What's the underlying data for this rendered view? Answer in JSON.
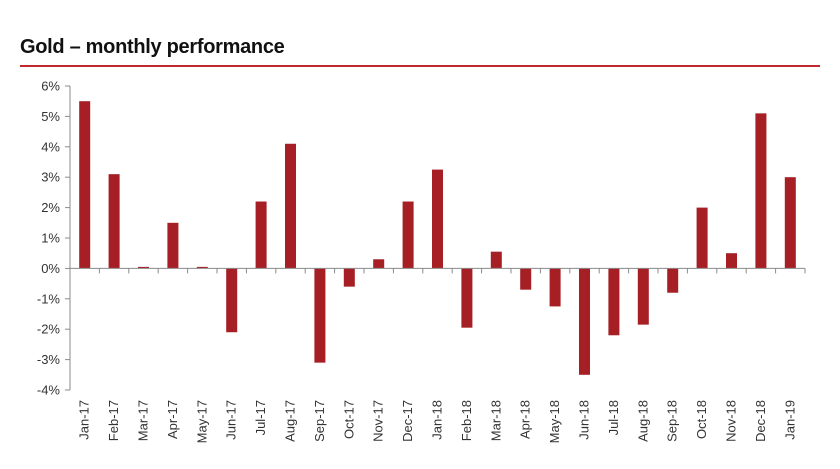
{
  "colors": {
    "bar": "#a51f24",
    "rule": "#c0282d",
    "axis": "#8a8a8a",
    "text": "#333333"
  },
  "chart_data": {
    "type": "bar",
    "title": "Gold – monthly performance",
    "xlabel": "",
    "ylabel": "",
    "ylim": [
      -4,
      6
    ],
    "yticks": [
      -4,
      -3,
      -2,
      -1,
      0,
      1,
      2,
      3,
      4,
      5,
      6
    ],
    "ytick_labels": [
      "-4%",
      "-3%",
      "-2%",
      "-1%",
      "0%",
      "1%",
      "2%",
      "3%",
      "4%",
      "5%",
      "6%"
    ],
    "categories": [
      "Jan-17",
      "Feb-17",
      "Mar-17",
      "Apr-17",
      "May-17",
      "Jun-17",
      "Jul-17",
      "Aug-17",
      "Sep-17",
      "Oct-17",
      "Nov-17",
      "Dec-17",
      "Jan-18",
      "Feb-18",
      "Mar-18",
      "Apr-18",
      "May-18",
      "Jun-18",
      "Jul-18",
      "Aug-18",
      "Sep-18",
      "Oct-18",
      "Nov-18",
      "Dec-18",
      "Jan-19"
    ],
    "values": [
      5.5,
      3.1,
      0.05,
      1.5,
      0.05,
      -2.1,
      2.2,
      4.1,
      -3.1,
      -0.6,
      0.3,
      2.2,
      3.25,
      -1.95,
      0.55,
      -0.7,
      -1.25,
      -3.5,
      -2.2,
      -1.85,
      -0.8,
      2.0,
      0.5,
      5.1,
      3.0
    ],
    "grid": false,
    "legend": "none"
  }
}
